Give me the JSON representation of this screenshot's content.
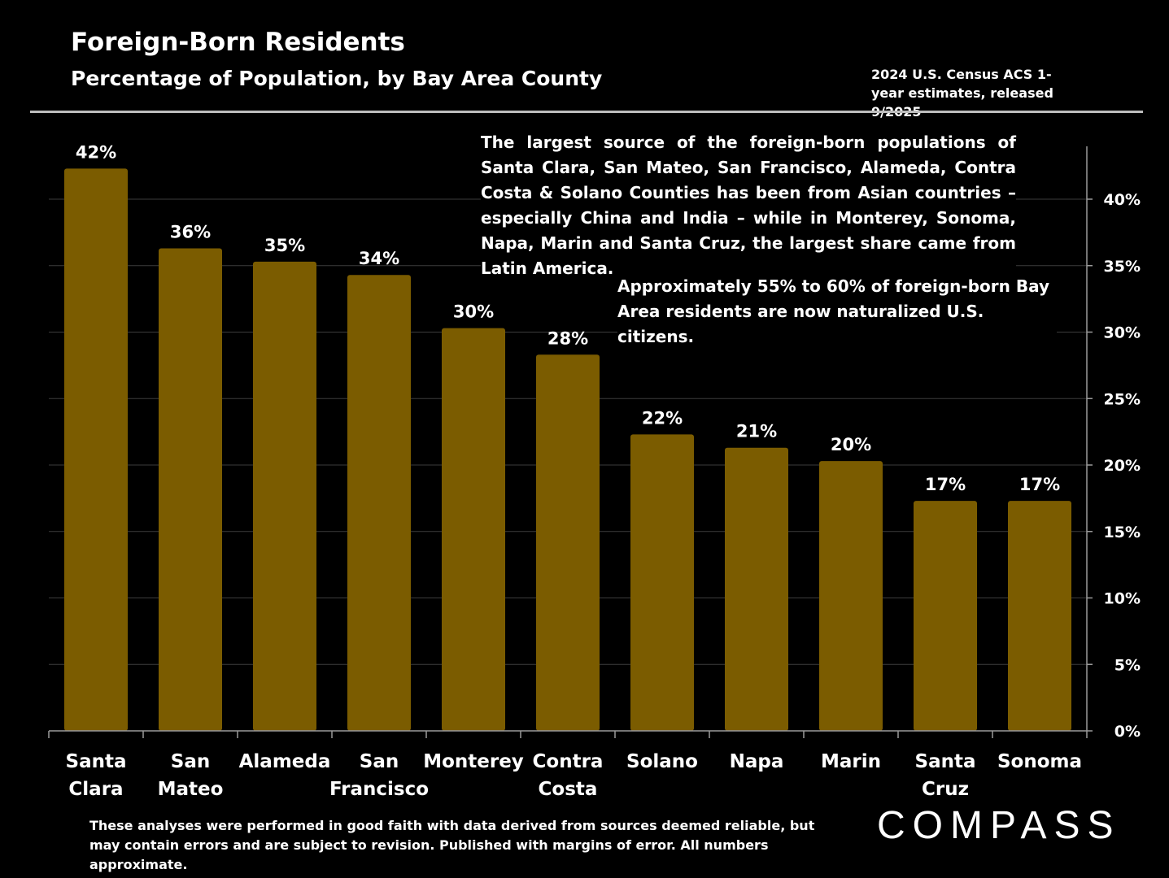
{
  "header": {
    "title": "Foreign-Born Residents",
    "subtitle": "Percentage of Population, by Bay Area County",
    "source": "2024 U.S. Census ACS 1-year estimates, released 9/2025"
  },
  "notes": {
    "note1": "The largest source of the foreign-born populations of Santa Clara, San Mateo, San Francisco, Alameda, Contra Costa & Solano Counties has been from Asian countries – especially China and India – while in Monterey, Sonoma, Napa, Marin and Santa Cruz, the largest share came from Latin America.",
    "note2": "Approximately 55% to 60% of foreign-born Bay Area residents are now naturalized U.S. citizens."
  },
  "footer": {
    "disclaimer": "These analyses were performed in good faith with data derived from sources deemed reliable, but may contain errors and are subject to revision.  Published with margins of error. All numbers approximate.",
    "logo": "COMPASS"
  },
  "colors": {
    "bar": "#7b5c00",
    "background": "#000000",
    "grid": "#3c3c3c",
    "text": "#ffffff"
  },
  "chart_data": {
    "type": "bar",
    "title": "Foreign-Born Residents",
    "subtitle": "Percentage of Population, by Bay Area County",
    "categories": [
      [
        "Santa",
        "Clara"
      ],
      [
        "San",
        "Mateo"
      ],
      [
        "Alameda"
      ],
      [
        "San",
        "Francisco"
      ],
      [
        "Monterey"
      ],
      [
        "Contra",
        "Costa"
      ],
      [
        "Solano"
      ],
      [
        "Napa"
      ],
      [
        "Marin"
      ],
      [
        "Santa",
        "Cruz"
      ],
      [
        "Sonoma"
      ]
    ],
    "values": [
      0.423,
      0.363,
      0.353,
      0.343,
      0.303,
      0.283,
      0.223,
      0.213,
      0.203,
      0.173,
      0.173
    ],
    "data_labels": [
      "42%",
      "36%",
      "35%",
      "34%",
      "30%",
      "28%",
      "22%",
      "21%",
      "20%",
      "17%",
      "17%"
    ],
    "yticks": [
      0,
      0.05,
      0.1,
      0.15,
      0.2,
      0.25,
      0.3,
      0.35,
      0.4
    ],
    "ytick_labels": [
      "0%",
      "5%",
      "10%",
      "15%",
      "20%",
      "25%",
      "30%",
      "35%",
      "40%"
    ],
    "ylim": [
      0,
      0.44
    ],
    "yaxis_position": "right",
    "grid": true
  }
}
